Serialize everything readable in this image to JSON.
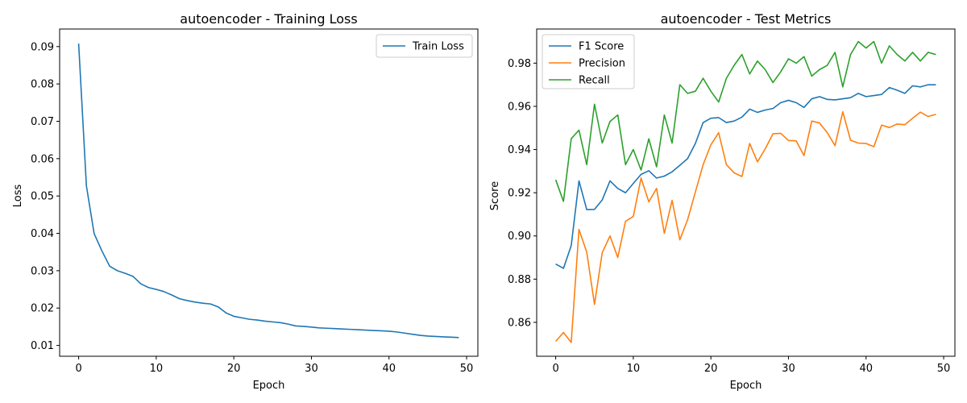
{
  "chart_data": [
    {
      "type": "line",
      "title": "autoencoder - Training Loss",
      "xlabel": "Epoch",
      "ylabel": "Loss",
      "xlim": [
        -2.45,
        51.45
      ],
      "ylim": [
        0.0071,
        0.0947
      ],
      "xticks": [
        0,
        10,
        20,
        30,
        40,
        50
      ],
      "xtick_labels": [
        "0",
        "10",
        "20",
        "30",
        "40",
        "50"
      ],
      "yticks": [
        0.01,
        0.02,
        0.03,
        0.04,
        0.05,
        0.06,
        0.07,
        0.08,
        0.09
      ],
      "ytick_labels": [
        "0.01",
        "0.02",
        "0.03",
        "0.04",
        "0.05",
        "0.06",
        "0.07",
        "0.08",
        "0.09"
      ],
      "grid": false,
      "legend_position": "top-right",
      "x": [
        0,
        1,
        2,
        3,
        4,
        5,
        6,
        7,
        8,
        9,
        10,
        11,
        12,
        13,
        14,
        15,
        16,
        17,
        18,
        19,
        20,
        21,
        22,
        23,
        24,
        25,
        26,
        27,
        28,
        29,
        30,
        31,
        32,
        33,
        34,
        35,
        36,
        37,
        38,
        39,
        40,
        41,
        42,
        43,
        44,
        45,
        46,
        47,
        48,
        49
      ],
      "series": [
        {
          "name": "Train Loss",
          "color": "#1f77b4",
          "values": [
            0.0908,
            0.0527,
            0.0399,
            0.0353,
            0.0312,
            0.03,
            0.0293,
            0.0285,
            0.0265,
            0.0255,
            0.025,
            0.0244,
            0.0235,
            0.0225,
            0.022,
            0.0216,
            0.0213,
            0.0211,
            0.0203,
            0.0187,
            0.0178,
            0.0174,
            0.017,
            0.0168,
            0.0165,
            0.0163,
            0.0161,
            0.0157,
            0.0152,
            0.0151,
            0.0149,
            0.0147,
            0.0146,
            0.0145,
            0.0144,
            0.0143,
            0.0142,
            0.0141,
            0.014,
            0.0139,
            0.0138,
            0.0136,
            0.0133,
            0.013,
            0.0127,
            0.0125,
            0.0124,
            0.0123,
            0.0122,
            0.0121
          ]
        }
      ]
    },
    {
      "type": "line",
      "title": "autoencoder - Test Metrics",
      "xlabel": "Epoch",
      "ylabel": "Score",
      "xlim": [
        -2.45,
        51.45
      ],
      "ylim": [
        0.8443,
        0.9958
      ],
      "xticks": [
        0,
        10,
        20,
        30,
        40,
        50
      ],
      "xtick_labels": [
        "0",
        "10",
        "20",
        "30",
        "40",
        "50"
      ],
      "yticks": [
        0.86,
        0.88,
        0.9,
        0.92,
        0.94,
        0.96,
        0.98
      ],
      "ytick_labels": [
        "0.86",
        "0.88",
        "0.90",
        "0.92",
        "0.94",
        "0.96",
        "0.98"
      ],
      "grid": false,
      "legend_position": "top-left",
      "x": [
        0,
        1,
        2,
        3,
        4,
        5,
        6,
        7,
        8,
        9,
        10,
        11,
        12,
        13,
        14,
        15,
        16,
        17,
        18,
        19,
        20,
        21,
        22,
        23,
        24,
        25,
        26,
        27,
        28,
        29,
        30,
        31,
        32,
        33,
        34,
        35,
        36,
        37,
        38,
        39,
        40,
        41,
        42,
        43,
        44,
        45,
        46,
        47,
        48,
        49
      ],
      "series": [
        {
          "name": "F1 Score",
          "color": "#1f77b4",
          "values": [
            0.887,
            0.885,
            0.8955,
            0.9255,
            0.9122,
            0.9123,
            0.9167,
            0.9255,
            0.922,
            0.92,
            0.9243,
            0.9285,
            0.9302,
            0.9268,
            0.9277,
            0.9297,
            0.9327,
            0.9358,
            0.9428,
            0.9525,
            0.9545,
            0.9548,
            0.9525,
            0.9532,
            0.955,
            0.9587,
            0.9572,
            0.9583,
            0.959,
            0.9617,
            0.9628,
            0.9617,
            0.9595,
            0.9635,
            0.9645,
            0.9632,
            0.963,
            0.9635,
            0.964,
            0.966,
            0.9645,
            0.965,
            0.9655,
            0.9687,
            0.9675,
            0.966,
            0.9695,
            0.969,
            0.97,
            0.97
          ]
        },
        {
          "name": "Precision",
          "color": "#ff7f0e",
          "values": [
            0.8512,
            0.8553,
            0.8507,
            0.903,
            0.8925,
            0.8683,
            0.8923,
            0.9,
            0.89,
            0.9068,
            0.909,
            0.9268,
            0.9158,
            0.922,
            0.9012,
            0.9165,
            0.8982,
            0.9075,
            0.9203,
            0.933,
            0.9422,
            0.9478,
            0.933,
            0.9292,
            0.9275,
            0.9428,
            0.9343,
            0.9403,
            0.9473,
            0.9475,
            0.9442,
            0.944,
            0.9372,
            0.9532,
            0.9523,
            0.9478,
            0.9418,
            0.9575,
            0.9443,
            0.943,
            0.9428,
            0.9413,
            0.9513,
            0.9502,
            0.9518,
            0.9515,
            0.9545,
            0.9573,
            0.9553,
            0.9563
          ]
        },
        {
          "name": "Recall",
          "color": "#2ca02c",
          "values": [
            0.926,
            0.916,
            0.945,
            0.949,
            0.933,
            0.961,
            0.943,
            0.953,
            0.956,
            0.933,
            0.94,
            0.9305,
            0.945,
            0.932,
            0.956,
            0.943,
            0.97,
            0.966,
            0.967,
            0.973,
            0.967,
            0.962,
            0.973,
            0.979,
            0.984,
            0.975,
            0.981,
            0.977,
            0.971,
            0.976,
            0.982,
            0.98,
            0.983,
            0.974,
            0.977,
            0.979,
            0.985,
            0.969,
            0.984,
            0.99,
            0.987,
            0.99,
            0.98,
            0.988,
            0.984,
            0.981,
            0.985,
            0.981,
            0.985,
            0.984
          ]
        }
      ]
    }
  ]
}
